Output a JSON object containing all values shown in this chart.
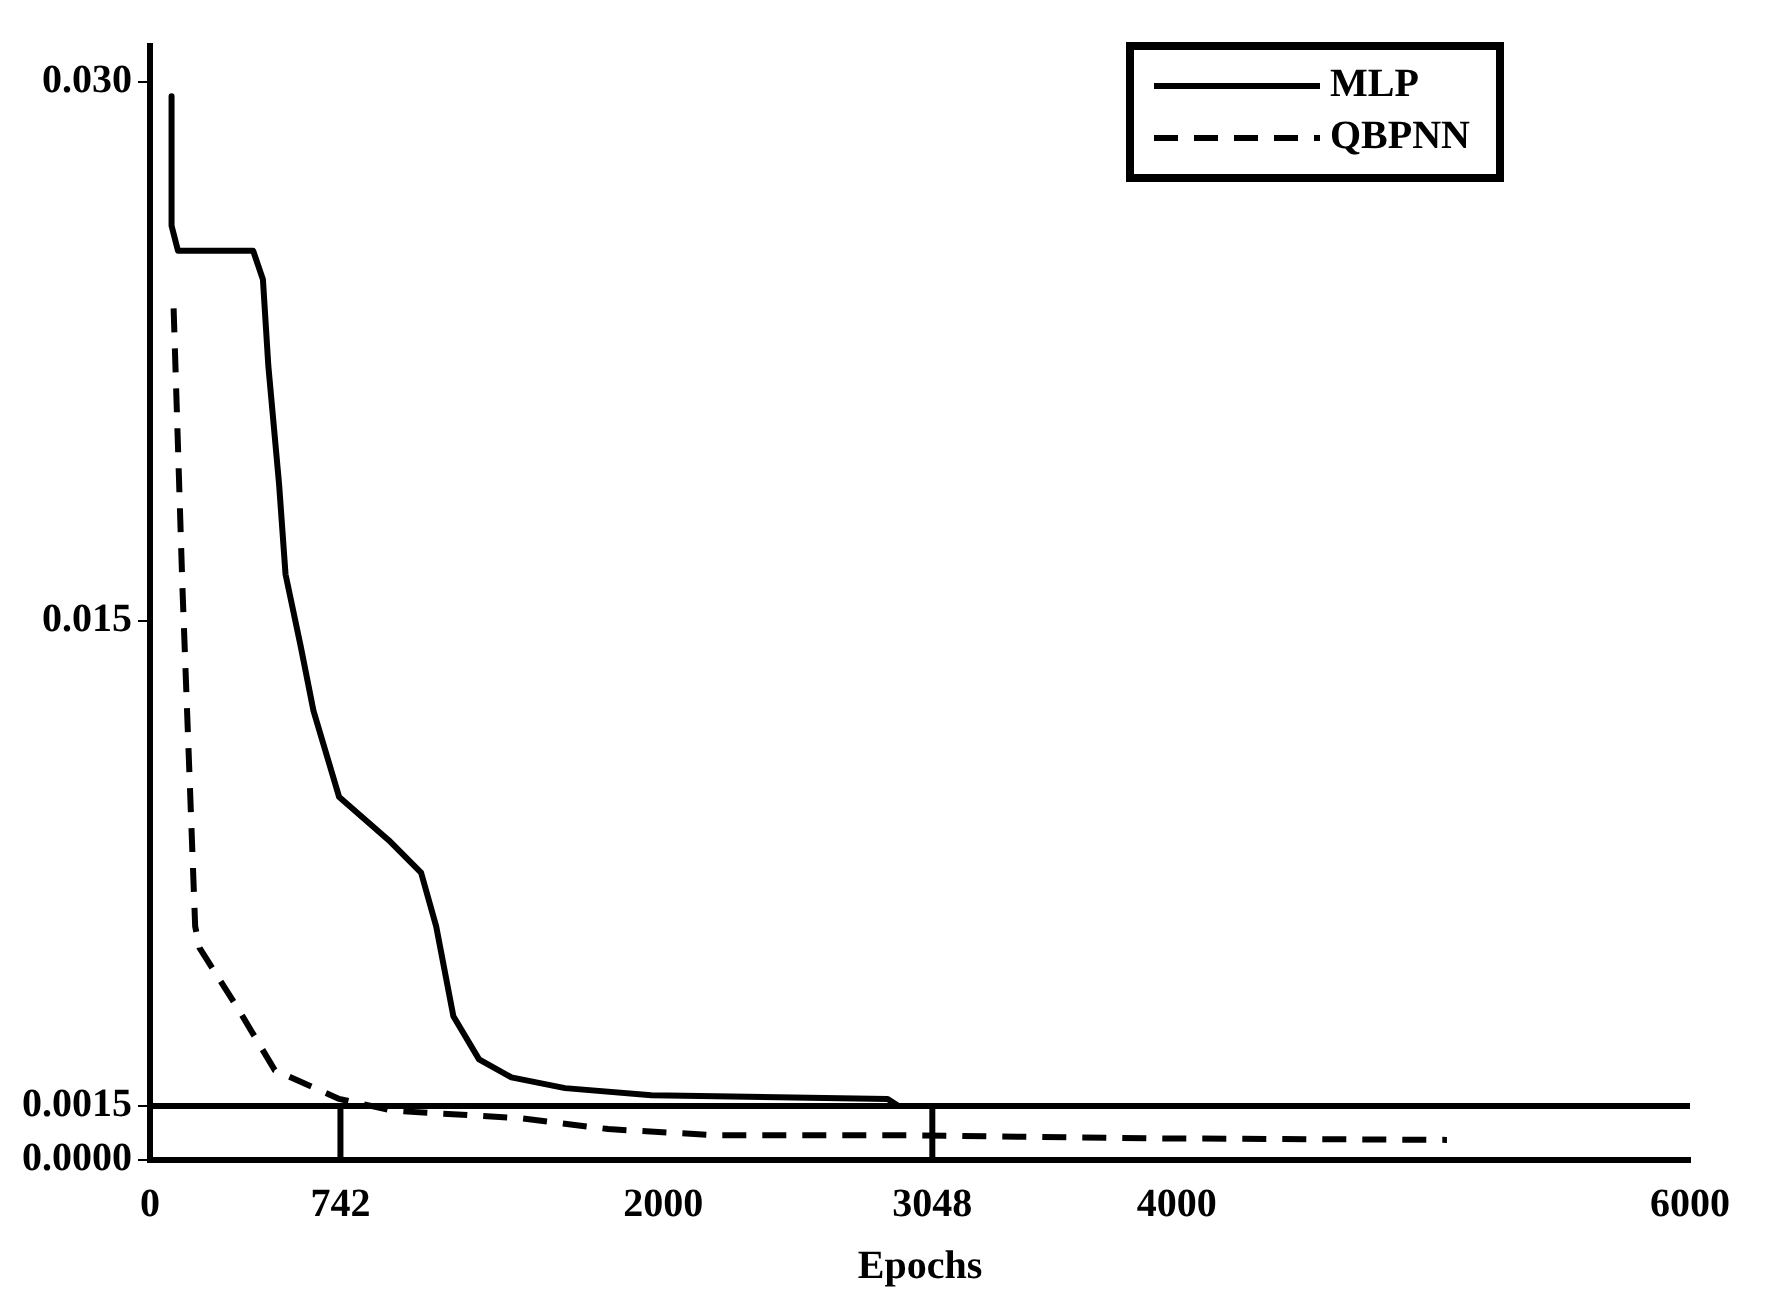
{
  "chart_data": {
    "type": "line",
    "xlabel": "Epochs",
    "xlim": [
      0,
      6000
    ],
    "xticks": [
      0,
      742,
      2000,
      3048,
      4000,
      6000
    ],
    "ylim": [
      0,
      0.031
    ],
    "yticks": [
      {
        "value": 0,
        "label": "0.0000"
      },
      {
        "value": 0.0015,
        "label": "0.0015"
      },
      {
        "value": 0.015,
        "label": "0.015"
      },
      {
        "value": 0.03,
        "label": "0.030"
      }
    ],
    "grid": false,
    "legend": "top right",
    "marker": "none",
    "series": [
      {
        "name": "MLP",
        "color": "#000000",
        "line_style": "solid",
        "x": [
          84,
          84,
          109,
          402,
          440,
          461,
          503,
          528,
          587,
          637,
          737,
          930,
          1056,
          1115,
          1182,
          1282,
          1408,
          1617,
          1953,
          2874,
          2916
        ],
        "values": [
          0.0296,
          0.026,
          0.0253,
          0.0253,
          0.0245,
          0.0221,
          0.0188,
          0.0163,
          0.0143,
          0.0125,
          0.0101,
          0.0089,
          0.008,
          0.0065,
          0.004,
          0.0028,
          0.0023,
          0.002,
          0.0018,
          0.0017,
          0.0015
        ]
      },
      {
        "name": "QBPNN",
        "color": "#000000",
        "line_style": "dashed",
        "x": [
          92,
          126,
          176,
          193,
          344,
          486,
          737,
          947,
          1450,
          1785,
          2204,
          2958,
          3461,
          3964,
          5053
        ],
        "values": [
          0.0237,
          0.016,
          0.0065,
          0.0059,
          0.0042,
          0.0025,
          0.0017,
          0.00137,
          0.00116,
          0.00086,
          0.00069,
          0.00069,
          0.00064,
          0.0006,
          0.00056
        ]
      },
      {
        "color": "#000000",
        "line_style": "solid",
        "x": [
          742,
          742
        ],
        "values": [
          0,
          0.0015
        ]
      },
      {
        "color": "#000000",
        "line_style": "solid",
        "x": [
          3048,
          3048
        ],
        "values": [
          0,
          0.0015
        ]
      }
    ],
    "ref_lines": [
      {
        "axis": "y",
        "value": 0.0015,
        "color": "#000000"
      }
    ]
  }
}
